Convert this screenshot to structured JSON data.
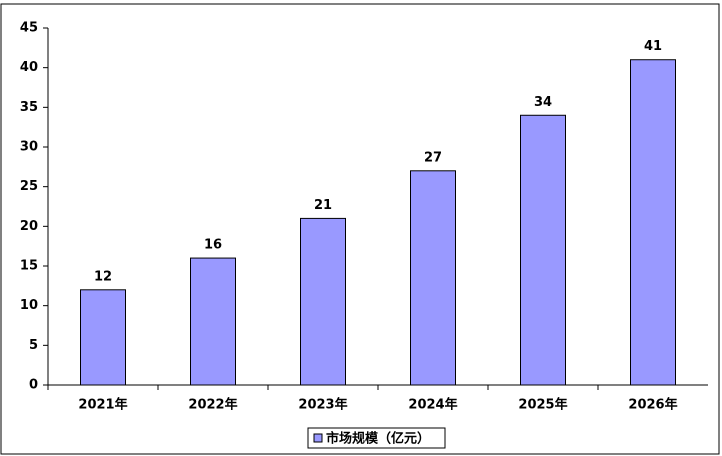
{
  "chart_data": {
    "type": "bar",
    "categories": [
      "2021年",
      "2022年",
      "2023年",
      "2024年",
      "2025年",
      "2026年"
    ],
    "series": [
      {
        "name": "市场规模（亿元）",
        "color": "#9999ff",
        "values": [
          12,
          16,
          21,
          27,
          34,
          41
        ]
      }
    ],
    "ylim": [
      0,
      45
    ],
    "yticks": [
      0,
      5,
      10,
      15,
      20,
      25,
      30,
      35,
      40,
      45
    ],
    "grid": false,
    "legend": "bottom"
  }
}
